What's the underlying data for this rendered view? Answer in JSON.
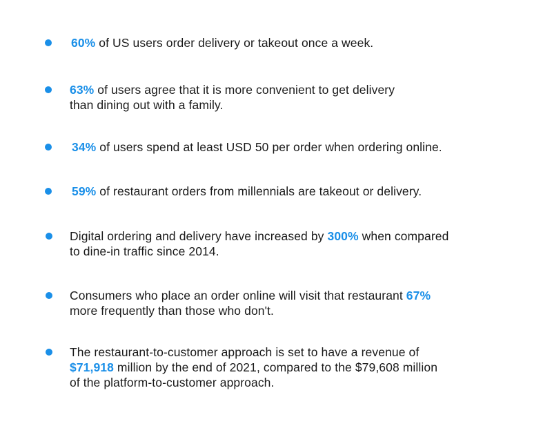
{
  "accent_color": "#1a8fe8",
  "bullet_icon": "bullet-dot-icon",
  "items": [
    {
      "lines": [
        {
          "hl": "60%",
          "post": " of US users order delivery or takeout once a week."
        }
      ]
    },
    {
      "lines": [
        {
          "hl": "63%",
          "post": " of users agree that it is more convenient to get delivery"
        },
        {
          "text": "than dining out with a family."
        }
      ]
    },
    {
      "lines": [
        {
          "hl": "34%",
          "post": " of users spend at least USD 50 per order when ordering online."
        }
      ]
    },
    {
      "lines": [
        {
          "hl": "59%",
          "post": " of restaurant orders from millennials are takeout or delivery."
        }
      ]
    },
    {
      "lines": [
        {
          "pre": "Digital ordering and delivery have increased by ",
          "hl": "300%",
          "post": " when compared"
        },
        {
          "text": "to dine-in traffic since 2014."
        }
      ]
    },
    {
      "lines": [
        {
          "pre": "Consumers who place an order online will visit that restaurant ",
          "hl": "67%"
        },
        {
          "text": "more frequently than those who don't."
        }
      ]
    },
    {
      "lines": [
        {
          "text": "The restaurant-to-customer approach is set to have a revenue of"
        },
        {
          "hl": "$71,918",
          "post": " million by the end of 2021, compared to the $79,608 million"
        },
        {
          "text": "of the platform-to-customer approach."
        }
      ]
    }
  ]
}
